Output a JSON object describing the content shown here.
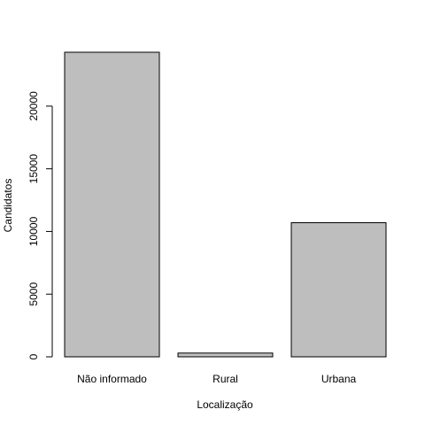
{
  "chart_data": {
    "type": "bar",
    "categories": [
      "Não informado",
      "Rural",
      "Urbana"
    ],
    "values": [
      24300,
      300,
      10700
    ],
    "title": "",
    "xlabel": "Localização",
    "ylabel": "Candidatos",
    "ylim": [
      0,
      24300
    ],
    "yticks": [
      0,
      5000,
      10000,
      15000,
      20000
    ],
    "grid": false,
    "colors": {
      "bar_fill": "#bebebe",
      "bar_stroke": "#000000",
      "axis": "#000000"
    }
  }
}
